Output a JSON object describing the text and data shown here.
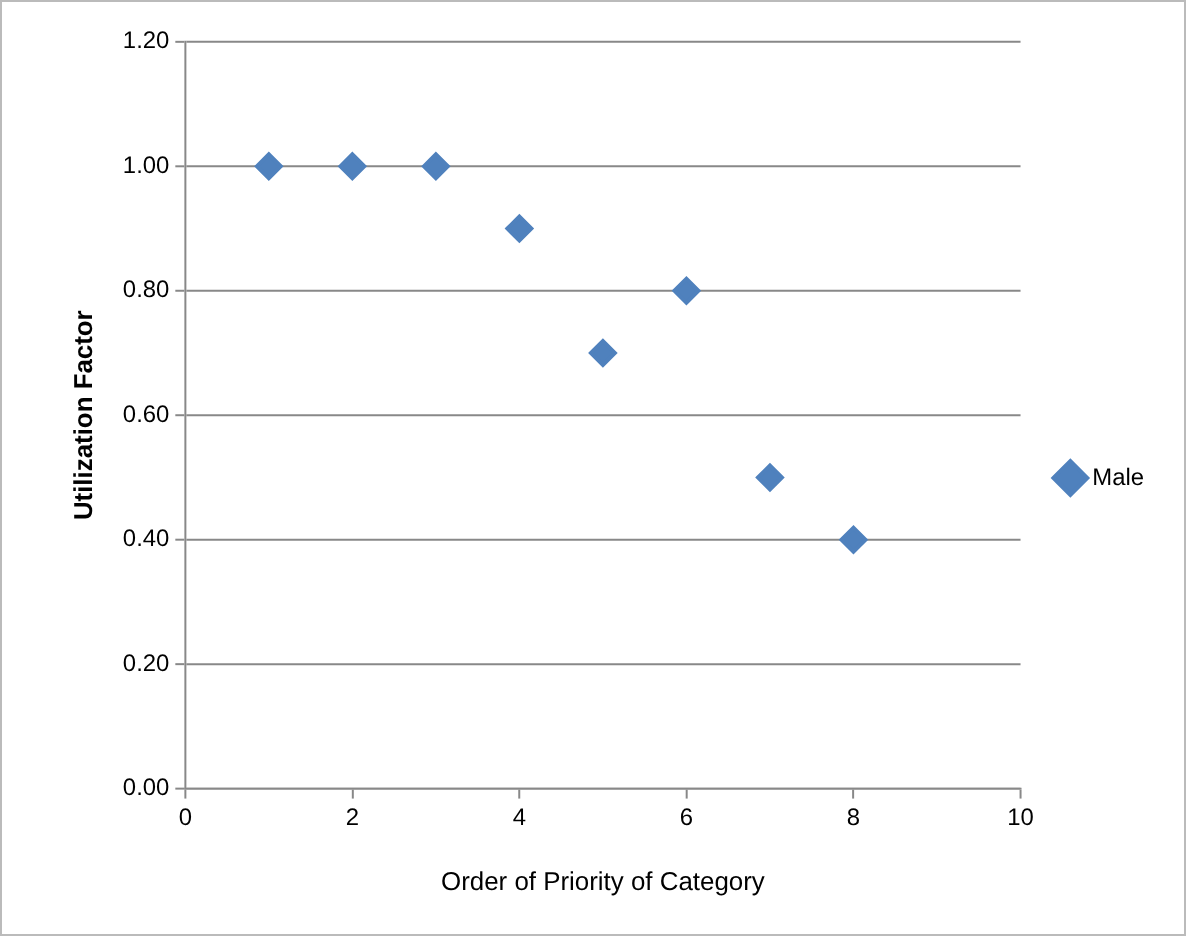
{
  "chart_data": {
    "type": "scatter",
    "xlabel": "Order of Priority of Category",
    "ylabel": "Utilization Factor",
    "x": [
      1,
      2,
      3,
      4,
      5,
      6,
      7,
      8
    ],
    "series": [
      {
        "name": "Male",
        "color": "#4f81bd",
        "values": [
          1.0,
          1.0,
          1.0,
          0.9,
          0.7,
          0.8,
          0.5,
          0.4
        ]
      }
    ],
    "xlim": [
      0,
      10
    ],
    "xticks": [
      0,
      2,
      4,
      6,
      8,
      10
    ],
    "ylim": [
      0,
      1.2
    ],
    "yticks": [
      {
        "value": 0,
        "label": "0.00"
      },
      {
        "value": 0.2,
        "label": "0.20"
      },
      {
        "value": 0.4,
        "label": "0.40"
      },
      {
        "value": 0.6,
        "label": "0.60"
      },
      {
        "value": 0.8,
        "label": "0.80"
      },
      {
        "value": 1.0,
        "label": "1.00"
      },
      {
        "value": 1.2,
        "label": "1.20"
      }
    ],
    "grid": "y",
    "legend": "right",
    "marker": "diamond"
  }
}
